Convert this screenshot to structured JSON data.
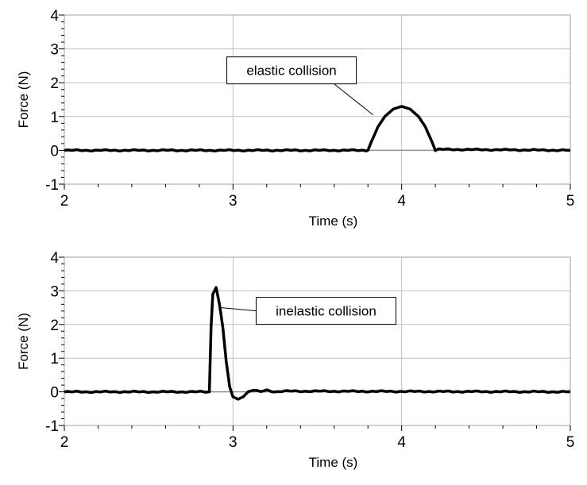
{
  "chart_data": [
    {
      "type": "line",
      "xlabel": "Time (s)",
      "ylabel": "Force (N)",
      "xlim": [
        2,
        5
      ],
      "ylim": [
        -1,
        4
      ],
      "xticks": [
        "2",
        "3",
        "4",
        "5"
      ],
      "yticks": [
        "-1",
        "0",
        "1",
        "2",
        "3",
        "4"
      ],
      "grid": true,
      "annotation": {
        "text": "elastic collision",
        "x": 3.83,
        "y": 1.05
      },
      "series": [
        {
          "x": [
            2,
            3.8,
            3.82,
            3.86,
            3.9,
            3.95,
            4.0,
            4.05,
            4.1,
            4.14,
            4.18,
            4.2,
            4.22,
            5
          ],
          "y": [
            0,
            0,
            0.25,
            0.7,
            1.0,
            1.22,
            1.3,
            1.22,
            1.0,
            0.7,
            0.25,
            0,
            0.03,
            0
          ]
        }
      ],
      "color": "#000000"
    },
    {
      "type": "line",
      "xlabel": "Time (s)",
      "ylabel": "Force (N)",
      "xlim": [
        2,
        5
      ],
      "ylim": [
        -1,
        4
      ],
      "xticks": [
        "2",
        "3",
        "4",
        "5"
      ],
      "yticks": [
        "-1",
        "0",
        "1",
        "2",
        "3",
        "4"
      ],
      "grid": true,
      "annotation": {
        "text": "inelastic collision",
        "x": 2.93,
        "y": 2.5
      },
      "series": [
        {
          "x": [
            2,
            2.86,
            2.87,
            2.88,
            2.9,
            2.92,
            2.94,
            2.96,
            2.98,
            3.0,
            3.03,
            3.06,
            3.09,
            3.12,
            3.16,
            3.2,
            3.25,
            3.3,
            5
          ],
          "y": [
            0,
            0,
            1.9,
            2.9,
            3.1,
            2.6,
            1.9,
            0.9,
            0.15,
            -0.15,
            -0.22,
            -0.15,
            0.0,
            0.05,
            0.0,
            0.05,
            0.0,
            0.02,
            0
          ]
        }
      ],
      "color": "#000000"
    }
  ]
}
